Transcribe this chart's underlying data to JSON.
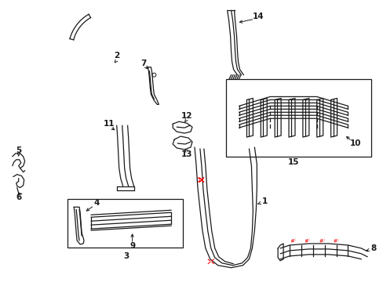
{
  "background_color": "#ffffff",
  "line_color": "#1a1a1a",
  "red_dash_color": "#ff0000",
  "box_color": "#1a1a1a",
  "label_color": "#1a1a1a",
  "parts": {
    "1": "1",
    "2": "2",
    "3": "3",
    "4": "4",
    "5": "5",
    "6": "6",
    "7": "7",
    "8": "8",
    "9": "9",
    "10": "10",
    "11": "11",
    "12": "12",
    "13": "13",
    "14": "14",
    "15": "15"
  },
  "figsize": [
    4.89,
    3.6
  ],
  "dpi": 100
}
